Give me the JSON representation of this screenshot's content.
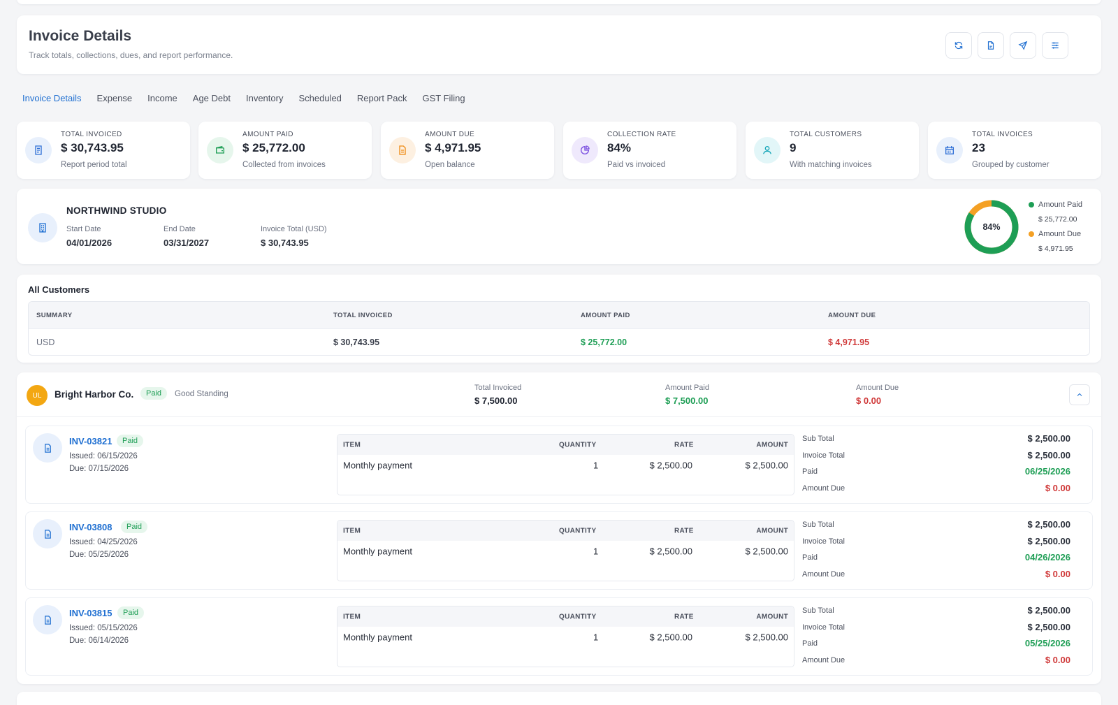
{
  "header": {
    "title": "Invoice Details",
    "subtitle": "Track totals, collections, dues, and report performance.",
    "buttons": [
      "refresh-icon",
      "pdf-icon",
      "send-icon",
      "sliders-icon"
    ]
  },
  "tabs": [
    {
      "label": "Invoice Details",
      "active": true
    },
    {
      "label": "Expense"
    },
    {
      "label": "Income"
    },
    {
      "label": "Age Debt"
    },
    {
      "label": "Inventory"
    },
    {
      "label": "Scheduled"
    },
    {
      "label": "Report Pack"
    },
    {
      "label": "GST Filing"
    }
  ],
  "stats": [
    {
      "label": "TOTAL INVOICED",
      "value": "$ 30,743.95",
      "sub": "Report period total",
      "icon": "invoice-icon",
      "color": "#2f6fd6",
      "bg": "#e8f0fc"
    },
    {
      "label": "AMOUNT PAID",
      "value": "$ 25,772.00",
      "sub": "Collected from invoices",
      "icon": "wallet-icon",
      "color": "#1e9e55",
      "bg": "#e6f6ec"
    },
    {
      "label": "AMOUNT DUE",
      "value": "$ 4,971.95",
      "sub": "Open balance",
      "icon": "document-icon",
      "color": "#ee8a14",
      "bg": "#fdf0e1"
    },
    {
      "label": "COLLECTION RATE",
      "value": "84%",
      "sub": "Paid vs invoiced",
      "icon": "pie-chart-icon",
      "color": "#7a4ee0",
      "bg": "#efe9fc"
    },
    {
      "label": "TOTAL CUSTOMERS",
      "value": "9",
      "sub": "With matching invoices",
      "icon": "user-icon",
      "color": "#13a5b8",
      "bg": "#e2f6f8"
    },
    {
      "label": "TOTAL INVOICES",
      "value": "23",
      "sub": "Grouped by customer",
      "icon": "calendar-icon",
      "color": "#2f6fd6",
      "bg": "#e8f0fc"
    }
  ],
  "company": {
    "name": "NORTHWIND STUDIO",
    "start_label": "Start Date",
    "start": "04/01/2026",
    "end_label": "End Date",
    "end": "03/31/2027",
    "total_label": "Invoice Total (USD)",
    "total": "$ 30,743.95",
    "donut_label": "84%",
    "donut_paid_fraction": 0.84,
    "legend": [
      {
        "label": "Amount Paid",
        "amount": "$ 25,772.00",
        "color": "#1e9e55"
      },
      {
        "label": "Amount Due",
        "amount": "$ 4,971.95",
        "color": "#f4a024"
      }
    ]
  },
  "all_customers": {
    "title": "All Customers",
    "columns": [
      "SUMMARY",
      "TOTAL INVOICED",
      "AMOUNT PAID",
      "AMOUNT DUE"
    ],
    "row": [
      "USD",
      "$ 30,743.95",
      "$ 25,772.00",
      "$ 4,971.95"
    ]
  },
  "customer": {
    "initials": "UL",
    "name": "Bright Harbor Co.",
    "status": "Paid",
    "standing": "Good Standing",
    "total_label": "Total Invoiced",
    "total": "$ 7,500.00",
    "paid_label": "Amount Paid",
    "paid": "$ 7,500.00",
    "due_label": "Amount Due",
    "due": "$ 0.00"
  },
  "item_columns": [
    "ITEM",
    "QUANTITY",
    "RATE",
    "AMOUNT"
  ],
  "totals_labels": [
    "Sub Total",
    "Invoice Total",
    "Paid",
    "Amount Due"
  ],
  "invoices": [
    {
      "number": "INV-03821",
      "status": "Paid",
      "issued": "Issued: 06/15/2026",
      "due": "Due: 07/15/2026",
      "item": "Monthly payment",
      "qty": "1",
      "rate": "$ 2,500.00",
      "amount": "$ 2,500.00",
      "sub_total": "$ 2,500.00",
      "invoice_total": "$ 2,500.00",
      "paid": "06/25/2026",
      "amount_due": "$ 0.00"
    },
    {
      "number": "INV-03808",
      "status": "Paid",
      "issued": "Issued: 04/25/2026",
      "due": "Due: 05/25/2026",
      "item": "Monthly payment",
      "qty": "1",
      "rate": "$ 2,500.00",
      "amount": "$ 2,500.00",
      "sub_total": "$ 2,500.00",
      "invoice_total": "$ 2,500.00",
      "paid": "04/26/2026",
      "amount_due": "$ 0.00"
    },
    {
      "number": "INV-03815",
      "status": "Paid",
      "issued": "Issued: 05/15/2026",
      "due": "Due: 06/14/2026",
      "item": "Monthly payment",
      "qty": "1",
      "rate": "$ 2,500.00",
      "amount": "$ 2,500.00",
      "sub_total": "$ 2,500.00",
      "invoice_total": "$ 2,500.00",
      "paid": "05/25/2026",
      "amount_due": "$ 0.00"
    }
  ]
}
